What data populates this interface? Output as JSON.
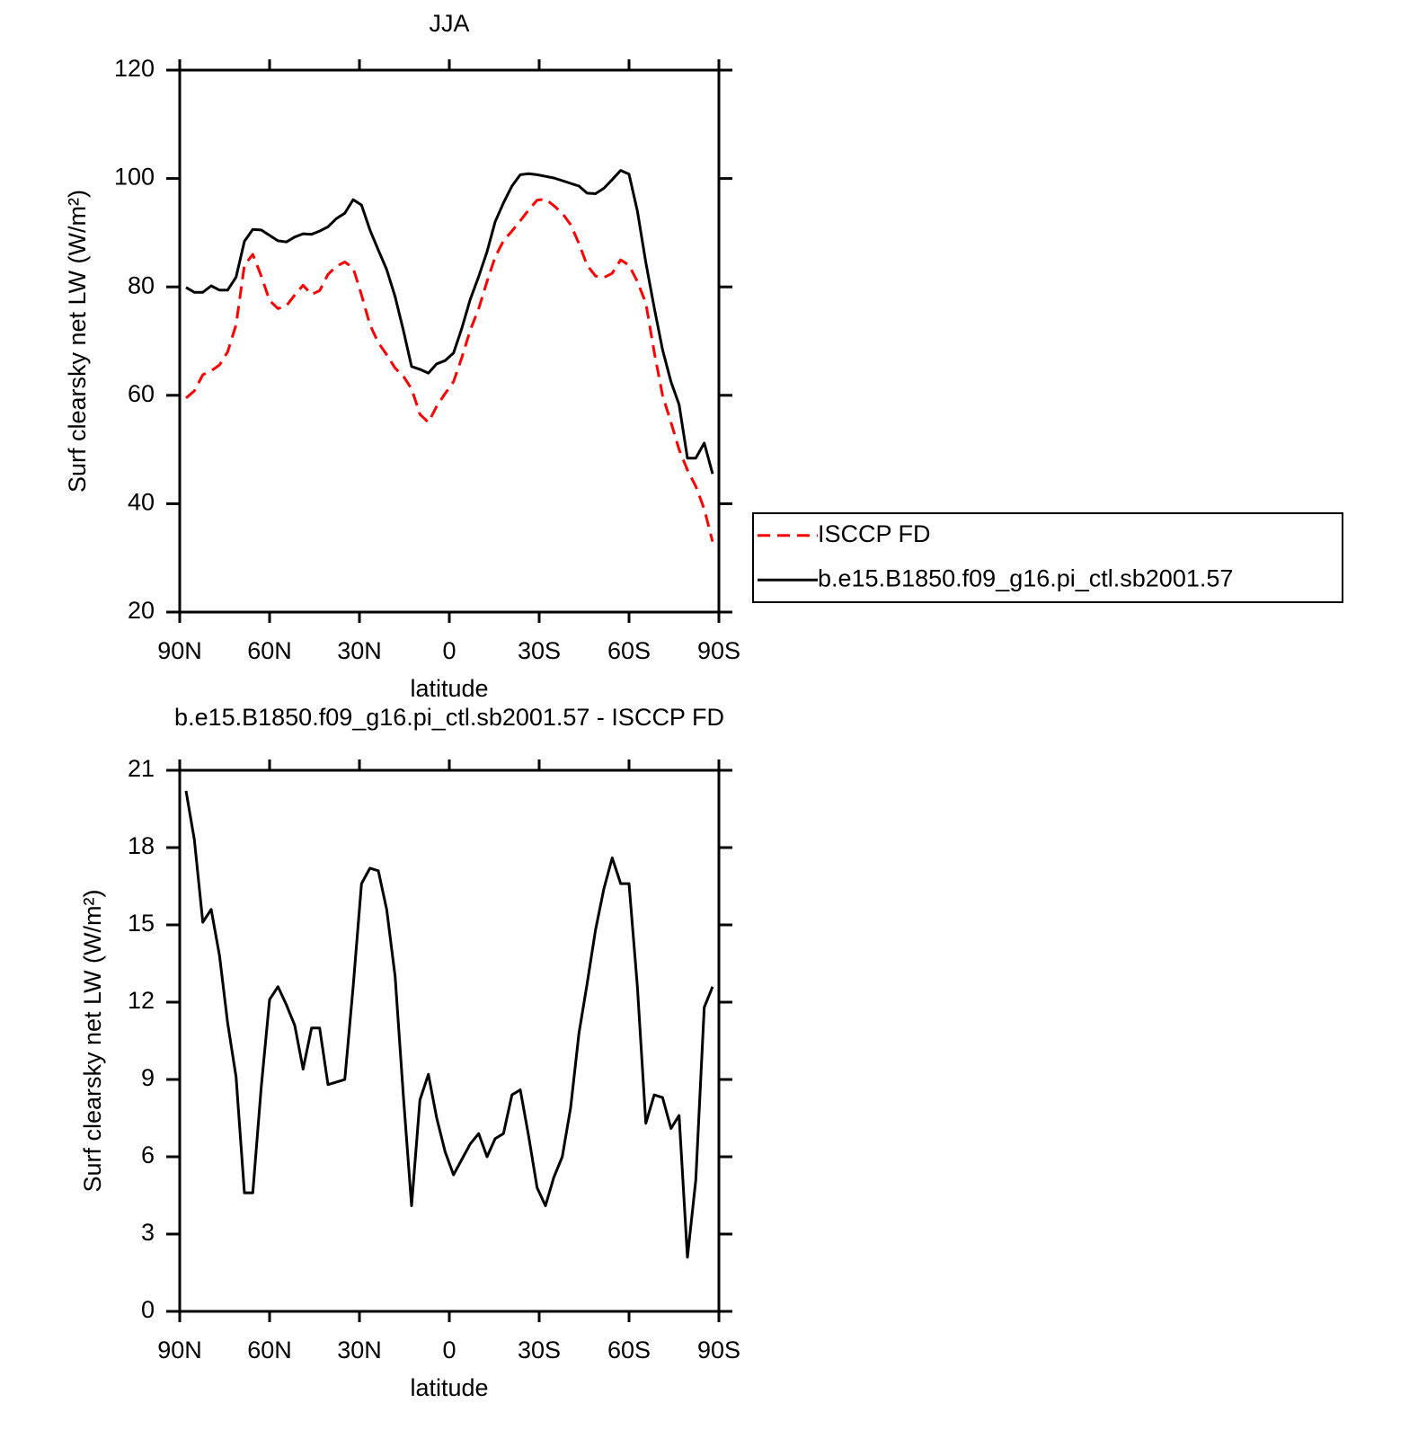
{
  "chart_data": [
    {
      "type": "line",
      "title": "JJA",
      "x_label": "latitude",
      "y_label": "Surf clearsky net LW (W/m²)",
      "xlim": [
        90,
        -90
      ],
      "xticks": [
        {
          "value": 90,
          "label": "90N"
        },
        {
          "value": 60,
          "label": "60N"
        },
        {
          "value": 30,
          "label": "30N"
        },
        0,
        {
          "value": -30,
          "label": "30S"
        },
        {
          "value": -60,
          "label": "60S"
        },
        {
          "value": -90,
          "label": "90S"
        }
      ],
      "ylim": [
        20,
        120
      ],
      "yticks": [
        20,
        40,
        60,
        80,
        100,
        120
      ],
      "legend": "right",
      "x": [
        87.9,
        85.1,
        82.3,
        79.5,
        76.7,
        74.0,
        71.2,
        68.4,
        65.6,
        62.8,
        60.0,
        57.2,
        54.4,
        51.6,
        48.8,
        46.0,
        43.3,
        40.5,
        37.7,
        34.9,
        32.1,
        29.3,
        26.5,
        23.7,
        20.9,
        18.1,
        15.3,
        12.6,
        9.8,
        7.0,
        4.2,
        1.4,
        -1.4,
        -4.2,
        -7.0,
        -9.8,
        -12.6,
        -15.3,
        -18.1,
        -20.9,
        -23.7,
        -26.5,
        -29.3,
        -32.1,
        -34.9,
        -37.7,
        -40.5,
        -43.3,
        -46.0,
        -48.8,
        -51.6,
        -54.4,
        -57.2,
        -60.0,
        -62.8,
        -65.6,
        -68.4,
        -71.2,
        -74.0,
        -76.7,
        -79.5,
        -82.3,
        -85.1,
        -87.9
      ],
      "series": [
        {
          "name": "ISCCP FD",
          "color": "#ff0000",
          "style": "dashed",
          "values": [
            59.5,
            60.8,
            63.8,
            64.5,
            65.6,
            68.0,
            73.0,
            84.0,
            86.0,
            82.0,
            77.5,
            76.0,
            76.5,
            78.5,
            80.3,
            78.6,
            79.3,
            82.3,
            83.8,
            84.6,
            83.5,
            78.5,
            73.0,
            69.7,
            67.5,
            65.0,
            63.5,
            61.2,
            56.5,
            55.0,
            58.0,
            60.3,
            62.5,
            67.0,
            72.0,
            76.0,
            81.0,
            85.5,
            88.5,
            90.3,
            92.2,
            94.2,
            96.0,
            96.2,
            95.0,
            93.6,
            91.5,
            88.0,
            84.0,
            82.0,
            81.7,
            82.5,
            85.0,
            84.0,
            81.0,
            77.0,
            68.0,
            60.0,
            55.0,
            50.0,
            46.2,
            43.2,
            39.0,
            33.0
          ]
        },
        {
          "name": "b.e15.B1850.f09_g16.pi_ctl.sb2001.57",
          "color": "#000000",
          "style": "solid",
          "values": [
            79.9,
            79.0,
            79.0,
            80.2,
            79.4,
            79.4,
            81.8,
            88.4,
            90.6,
            90.5,
            89.5,
            88.5,
            88.3,
            89.2,
            89.8,
            89.7,
            90.3,
            91.1,
            92.6,
            93.6,
            96.1,
            95.1,
            90.5,
            86.8,
            83.2,
            78.2,
            71.9,
            65.3,
            64.8,
            64.1,
            65.8,
            66.4,
            67.8,
            72.4,
            77.7,
            81.9,
            86.5,
            92.0,
            95.5,
            98.6,
            100.7,
            100.9,
            100.7,
            100.4,
            100.1,
            99.6,
            99.1,
            98.6,
            97.3,
            97.2,
            98.2,
            99.8,
            101.5,
            100.8,
            94.0,
            84.5,
            76.2,
            68.4,
            62.5,
            58.3,
            48.4,
            48.4,
            51.2,
            45.5
          ]
        }
      ]
    },
    {
      "type": "line",
      "title": "b.e15.B1850.f09_g16.pi_ctl.sb2001.57 - ISCCP FD",
      "x_label": "latitude",
      "y_label": "Surf clearsky net LW (W/m²)",
      "xlim": [
        90,
        -90
      ],
      "xticks": [
        {
          "value": 90,
          "label": "90N"
        },
        {
          "value": 60,
          "label": "60N"
        },
        {
          "value": 30,
          "label": "30N"
        },
        0,
        {
          "value": -30,
          "label": "30S"
        },
        {
          "value": -60,
          "label": "60S"
        },
        {
          "value": -90,
          "label": "90S"
        }
      ],
      "ylim": [
        0,
        21
      ],
      "yticks": [
        0,
        3,
        6,
        9,
        12,
        15,
        18,
        21
      ],
      "x": [
        87.9,
        85.1,
        82.3,
        79.5,
        76.7,
        74.0,
        71.2,
        68.4,
        65.6,
        62.8,
        60.0,
        57.2,
        54.4,
        51.6,
        48.8,
        46.0,
        43.3,
        40.5,
        37.7,
        34.9,
        32.1,
        29.3,
        26.5,
        23.7,
        20.9,
        18.1,
        15.3,
        12.6,
        9.8,
        7.0,
        4.2,
        1.4,
        -1.4,
        -4.2,
        -7.0,
        -9.8,
        -12.6,
        -15.3,
        -18.1,
        -20.9,
        -23.7,
        -26.5,
        -29.3,
        -32.1,
        -34.9,
        -37.7,
        -40.5,
        -43.3,
        -46.0,
        -48.8,
        -51.6,
        -54.4,
        -57.2,
        -60.0,
        -62.8,
        -65.6,
        -68.4,
        -71.2,
        -74.0,
        -76.7,
        -79.5,
        -82.3,
        -85.1,
        -87.9
      ],
      "series": [
        {
          "color": "#000000",
          "style": "solid",
          "values": [
            20.2,
            18.3,
            15.1,
            15.6,
            13.8,
            11.2,
            9.1,
            4.6,
            4.6,
            8.7,
            12.1,
            12.6,
            11.9,
            11.1,
            9.4,
            11.0,
            11.0,
            8.8,
            8.9,
            9.0,
            12.6,
            16.6,
            17.2,
            17.1,
            15.6,
            13.0,
            8.3,
            4.1,
            8.2,
            9.2,
            7.5,
            6.2,
            5.3,
            5.9,
            6.5,
            6.9,
            6.0,
            6.7,
            6.9,
            8.4,
            8.6,
            6.8,
            4.8,
            4.1,
            5.2,
            6.0,
            7.9,
            10.8,
            12.7,
            14.8,
            16.4,
            17.6,
            16.6,
            16.6,
            12.6,
            7.3,
            8.4,
            8.3,
            7.1,
            7.6,
            2.1,
            5.1,
            11.8,
            12.6
          ]
        }
      ]
    }
  ]
}
